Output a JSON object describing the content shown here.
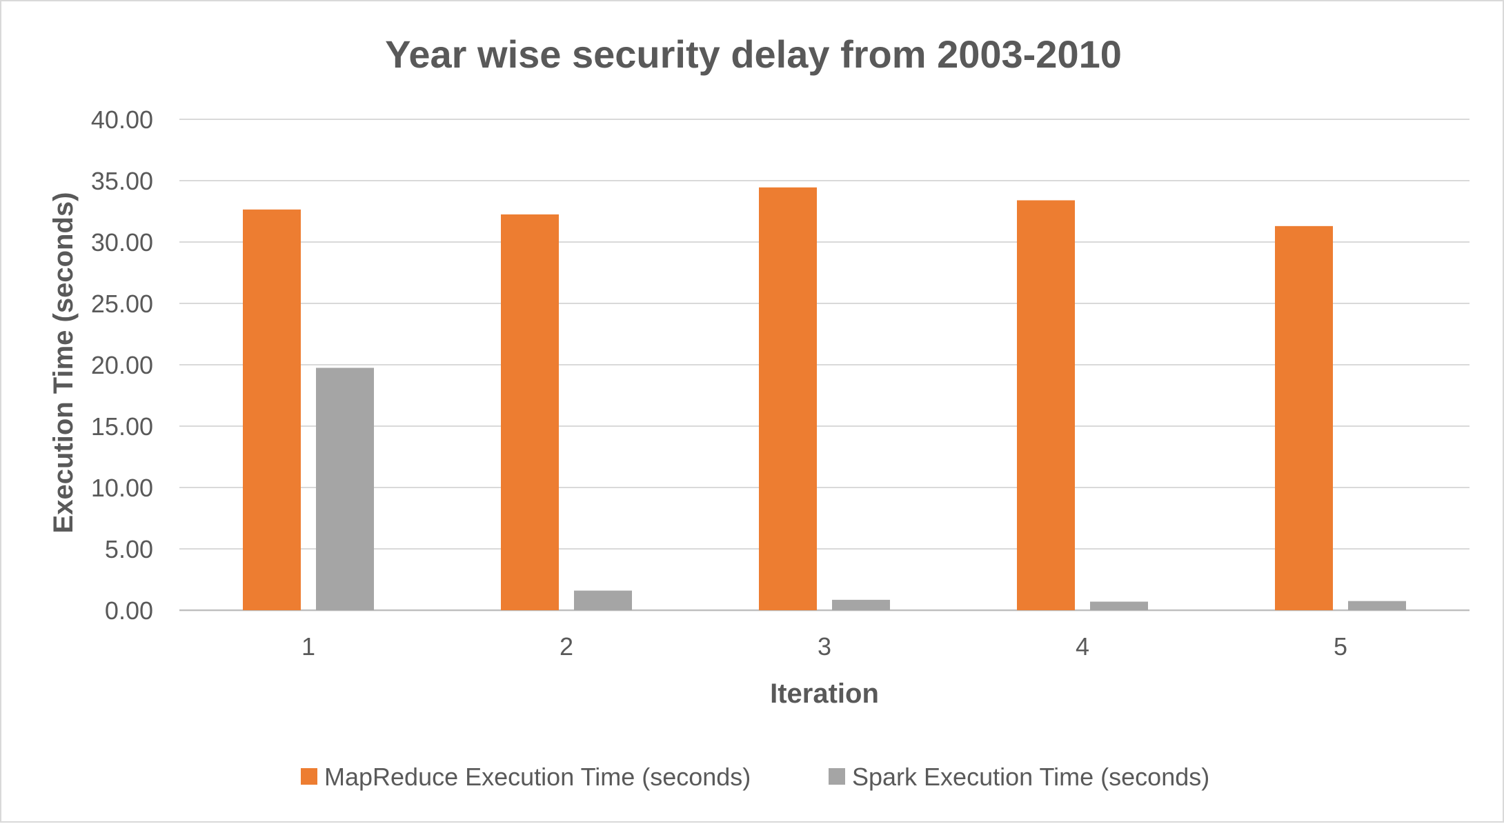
{
  "chart_data": {
    "type": "bar",
    "title": "Year wise security delay from 2003-2010",
    "xlabel": "Iteration",
    "ylabel": "Execution Time (seconds)",
    "categories": [
      "1",
      "2",
      "3",
      "4",
      "5"
    ],
    "series": [
      {
        "name": "MapReduce Execution Time (seconds)",
        "color": "#ed7d31",
        "values": [
          32.65,
          32.25,
          34.45,
          33.4,
          31.3
        ]
      },
      {
        "name": "Spark Execution Time (seconds)",
        "color": "#a5a5a5",
        "values": [
          19.75,
          1.6,
          0.85,
          0.7,
          0.75
        ]
      }
    ],
    "ylim": [
      0,
      40
    ],
    "yticks": [
      "0.00",
      "5.00",
      "10.00",
      "15.00",
      "20.00",
      "25.00",
      "30.00",
      "35.00",
      "40.00"
    ],
    "grid": true,
    "legend_position": "bottom"
  }
}
